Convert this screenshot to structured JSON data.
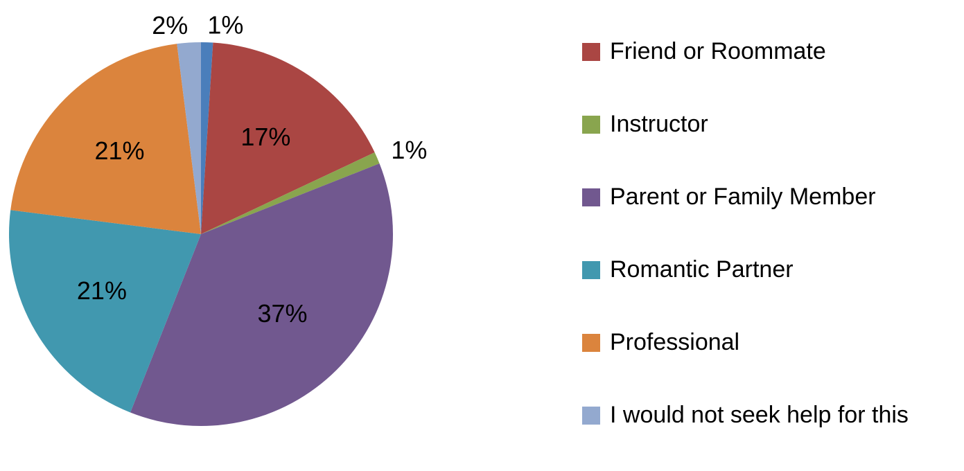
{
  "chart_data": {
    "type": "pie",
    "categories": [
      null,
      "Friend or Roommate",
      "Instructor",
      "Parent or Family Member",
      "Romantic Partner",
      "Professional",
      "I would not seek help for this"
    ],
    "values": [
      1,
      17,
      1,
      37,
      21,
      21,
      2
    ],
    "value_labels": [
      "1%",
      "17%",
      "1%",
      "37%",
      "21%",
      "21%",
      "2%"
    ],
    "colors": [
      "#4a7ebb",
      "#aa4643",
      "#89a54e",
      "#71588f",
      "#4198af",
      "#db843d",
      "#93a9cf"
    ],
    "legend": "right"
  }
}
